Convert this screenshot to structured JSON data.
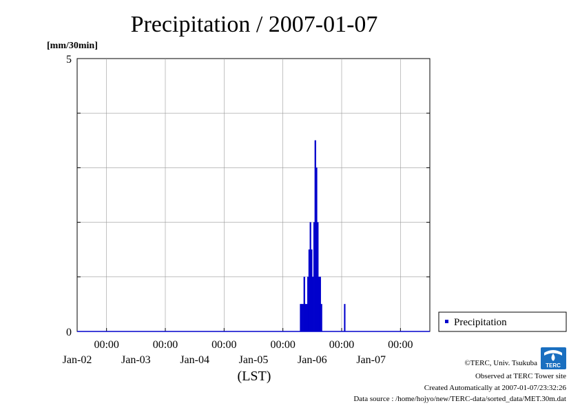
{
  "chart_data": {
    "type": "bar",
    "title": "Precipitation / 2007-01-07",
    "ylabel": "[mm/30min]",
    "xlabel": "(LST)",
    "ylim": [
      0,
      5
    ],
    "yticks_labeled": [
      "0",
      "5"
    ],
    "ygrid_step": 1,
    "grid": true,
    "x_range_days": [
      "2007-01-01T12:00",
      "2007-01-07T12:00"
    ],
    "xticks": [
      {
        "time": "00:00",
        "date": "Jan-02"
      },
      {
        "time": "00:00",
        "date": "Jan-03"
      },
      {
        "time": "00:00",
        "date": "Jan-04"
      },
      {
        "time": "00:00",
        "date": "Jan-05"
      },
      {
        "time": "00:00",
        "date": "Jan-06"
      },
      {
        "time": "00:00",
        "date": "Jan-07"
      }
    ],
    "legend": {
      "position": "right",
      "label": "Precipitation"
    },
    "series": [
      {
        "name": "Precipitation",
        "color": "#0000cc",
        "points": [
          {
            "t": "2007-01-05T07:00",
            "v": 0.5
          },
          {
            "t": "2007-01-05T07:30",
            "v": 0.5
          },
          {
            "t": "2007-01-05T08:00",
            "v": 0.5
          },
          {
            "t": "2007-01-05T08:30",
            "v": 1.0
          },
          {
            "t": "2007-01-05T09:00",
            "v": 0.5
          },
          {
            "t": "2007-01-05T09:30",
            "v": 0.5
          },
          {
            "t": "2007-01-05T10:00",
            "v": 1.0
          },
          {
            "t": "2007-01-05T10:30",
            "v": 1.5
          },
          {
            "t": "2007-01-05T11:00",
            "v": 2.0
          },
          {
            "t": "2007-01-05T11:30",
            "v": 1.5
          },
          {
            "t": "2007-01-05T12:00",
            "v": 1.0
          },
          {
            "t": "2007-01-05T12:30",
            "v": 2.0
          },
          {
            "t": "2007-01-05T13:00",
            "v": 3.5
          },
          {
            "t": "2007-01-05T13:30",
            "v": 3.0
          },
          {
            "t": "2007-01-05T14:00",
            "v": 2.0
          },
          {
            "t": "2007-01-05T14:30",
            "v": 1.0
          },
          {
            "t": "2007-01-05T15:00",
            "v": 1.0
          },
          {
            "t": "2007-01-05T15:30",
            "v": 0.5
          },
          {
            "t": "2007-01-06T01:00",
            "v": 0.5
          }
        ]
      }
    ]
  },
  "credits": {
    "copyright": "©TERC, Univ. Tsukuba",
    "observed": "Observed at TERC Tower site",
    "created": "Created Automatically at 2007-01-07/23:32:26",
    "source": "Data source : /home/hojyo/new/TERC-data/sorted_data/MET.30m.dat"
  },
  "logo": {
    "text": "TERC",
    "color": "#1a6fc0"
  }
}
